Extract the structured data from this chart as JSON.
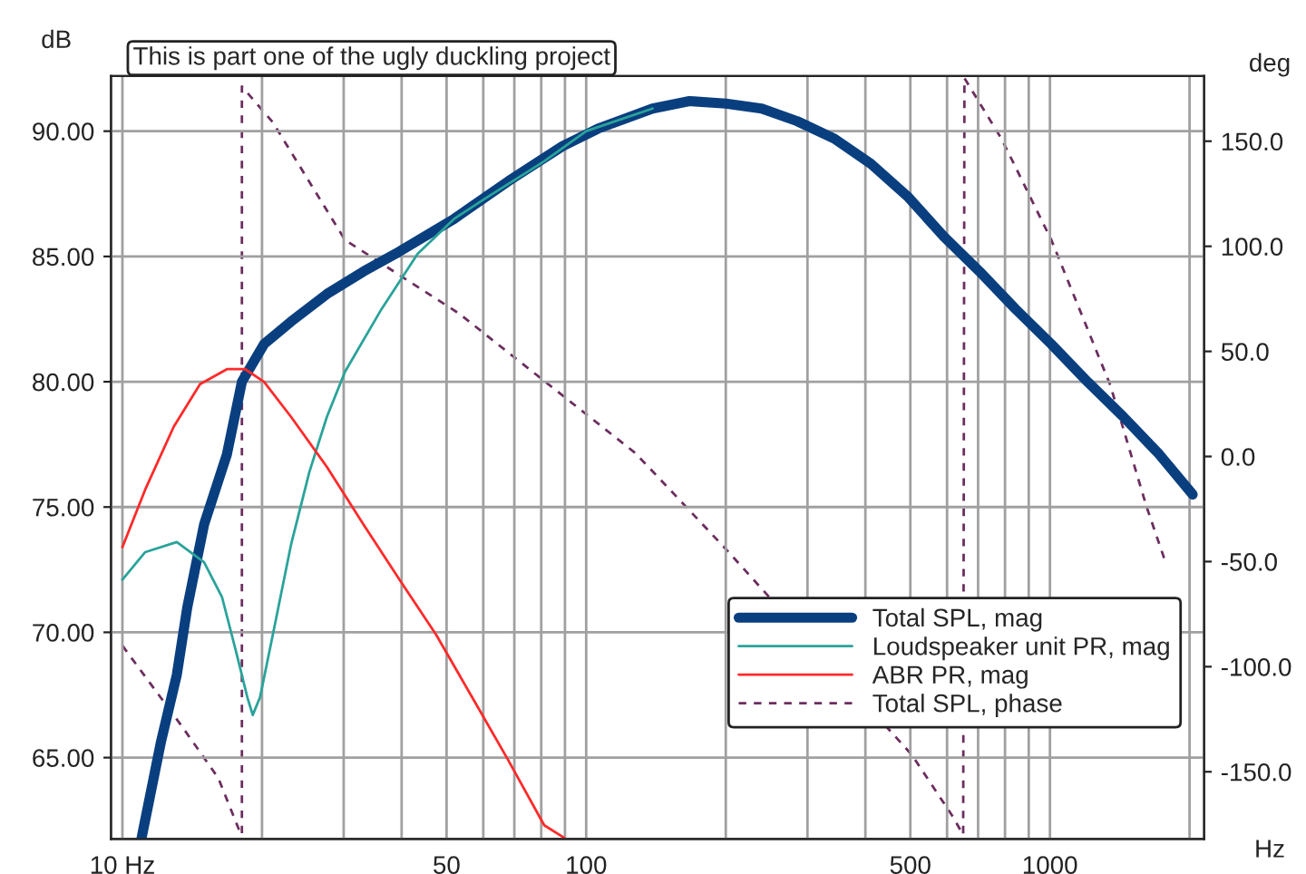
{
  "chart_data": {
    "type": "line",
    "xlabel": "Hz",
    "ylabel": "dB",
    "y2label": "deg",
    "annotations": [
      "This is part one of the ugly duckling project"
    ],
    "log": "x",
    "grid": true,
    "legend": "bottom right",
    "xlim": [
      9.45,
      2150
    ],
    "ylim": [
      61.75,
      92.2
    ],
    "y2lim": [
      -182,
      181
    ],
    "xticks": [
      {
        "value": 10,
        "label": "10 Hz"
      },
      {
        "value": 20,
        "label": null
      },
      {
        "value": 30,
        "label": null
      },
      {
        "value": 40,
        "label": null
      },
      50,
      {
        "value": 60,
        "label": null
      },
      {
        "value": 70,
        "label": null
      },
      {
        "value": 80,
        "label": null
      },
      {
        "value": 90,
        "label": null
      },
      100,
      {
        "value": 200,
        "label": null
      },
      {
        "value": 300,
        "label": null
      },
      {
        "value": 400,
        "label": null
      },
      500,
      {
        "value": 600,
        "label": null
      },
      {
        "value": 700,
        "label": null
      },
      {
        "value": 800,
        "label": null
      },
      {
        "value": 900,
        "label": null
      },
      1000,
      {
        "value": 2000,
        "label": null
      }
    ],
    "yticks": [
      {
        "value": 65,
        "label": "65.00"
      },
      {
        "value": 70,
        "label": "70.00"
      },
      {
        "value": 75,
        "label": "75.00"
      },
      {
        "value": 80,
        "label": "80.00"
      },
      {
        "value": 85,
        "label": "85.00"
      },
      {
        "value": 90,
        "label": "90.00"
      }
    ],
    "y2ticks": [
      {
        "value": -150,
        "label": "-150.0"
      },
      {
        "value": -100,
        "label": "-100.0"
      },
      {
        "value": -50,
        "label": "-50.0"
      },
      {
        "value": 0,
        "label": "0.0"
      },
      {
        "value": 50,
        "label": "50.0"
      },
      {
        "value": 100,
        "label": "100.0"
      },
      {
        "value": 150,
        "label": "150.0"
      }
    ],
    "series": [
      {
        "name": "Total SPL, mag",
        "color": "#0a3f7f",
        "line_style": "solid",
        "x": [
          11.0,
          12.1,
          13.1,
          13.8,
          15.0,
          16.8,
          18.1,
          20.2,
          23.1,
          27.6,
          33.1,
          39.6,
          51.9,
          67.9,
          88.9,
          106,
          139,
          167,
          200,
          239,
          285,
          343,
          411,
          493,
          590,
          705,
          843,
          1007,
          1205,
          1440,
          1721,
          2031
        ],
        "values": [
          61.8,
          65.6,
          68.3,
          71.0,
          74.3,
          77.1,
          80.0,
          81.5,
          82.4,
          83.5,
          84.4,
          85.2,
          86.5,
          88.0,
          89.4,
          90.1,
          90.9,
          91.2,
          91.1,
          90.9,
          90.4,
          89.7,
          88.7,
          87.4,
          85.8,
          84.4,
          82.9,
          81.5,
          80.0,
          78.6,
          77.1,
          75.5
        ]
      },
      {
        "name": "Loudspeaker unit PR, mag",
        "color": "#2aa39a",
        "line_style": "solid",
        "x": [
          10,
          11.2,
          13.1,
          15.0,
          16.4,
          17.6,
          18.6,
          19.1,
          19.8,
          21.1,
          23.1,
          25.3,
          27.6,
          30.2,
          36.2,
          43.3,
          51.9,
          60.4,
          81.2,
          100,
          139
        ],
        "values": [
          72.1,
          73.2,
          73.6,
          72.8,
          71.4,
          69.2,
          67.4,
          66.7,
          67.4,
          69.9,
          73.5,
          76.4,
          78.6,
          80.4,
          82.9,
          85.1,
          86.5,
          87.3,
          88.8,
          90.0,
          90.9
        ]
      },
      {
        "name": "ABR PR, mag",
        "color": "#ff2a2a",
        "line_style": "solid",
        "x": [
          10,
          11.2,
          12.9,
          14.7,
          16.8,
          18.4,
          20.2,
          23.1,
          27.6,
          33.1,
          39.6,
          47.5,
          56.8,
          67.9,
          81.2,
          89.7
        ],
        "values": [
          73.4,
          75.7,
          78.2,
          79.9,
          80.5,
          80.5,
          80.0,
          78.6,
          76.6,
          74.3,
          72.1,
          69.9,
          67.4,
          64.9,
          62.3,
          61.8
        ]
      },
      {
        "name": "Total SPL, phase",
        "color": "#6b2e5e",
        "line_style": "dashed",
        "axis": "y2",
        "x": [
          10,
          13.4,
          16.1,
          17.8,
          18.1,
          18.1,
          21.1,
          30.2,
          53.2,
          127,
          139,
          200,
          343,
          504,
          616,
          650,
          654,
          787,
          1007,
          1349,
          1616,
          1773
        ],
        "values": [
          -90,
          -128,
          -153,
          -177,
          -180,
          176,
          159,
          103,
          68,
          2,
          -7,
          -44,
          null,
          -142,
          -171,
          -180,
          180,
          151,
          103,
          34,
          -24,
          -50
        ]
      }
    ]
  }
}
